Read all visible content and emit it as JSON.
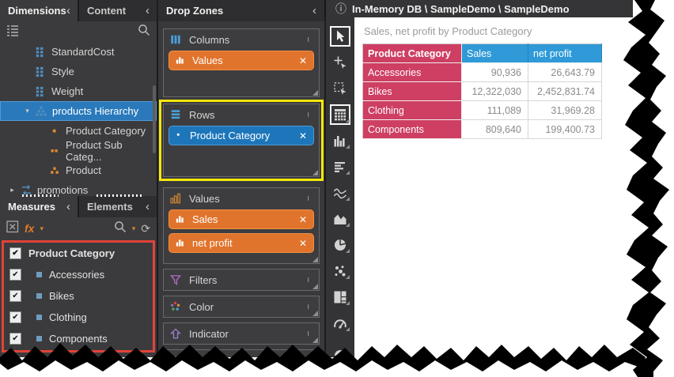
{
  "window": {
    "breadcrumb": "In-Memory DB \\ SampleDemo \\ SampleDemo"
  },
  "glyphs": {
    "collapse_chevron": "‹",
    "expander_down": "▾",
    "expander_right": "▸",
    "caret_down": "▾",
    "close_x": "✕",
    "checkmark": "✔",
    "refresh": "⟳",
    "info": "ⓘ",
    "fx": "fx"
  },
  "left_panel": {
    "tabs": [
      {
        "label": "Dimensions",
        "active": true
      },
      {
        "label": "Content",
        "active": false
      }
    ],
    "tree": [
      {
        "label": "StandardCost",
        "icon": "dimension-field-icon",
        "depth": 1
      },
      {
        "label": "Style",
        "icon": "dimension-field-icon",
        "depth": 1
      },
      {
        "label": "Weight",
        "icon": "dimension-field-icon",
        "depth": 1
      },
      {
        "label": "products Hierarchy",
        "icon": "hierarchy-icon",
        "depth": 1,
        "expanded": true,
        "selected": true
      },
      {
        "label": "Product Category",
        "icon": "hierarchy-level1-icon",
        "depth": 2
      },
      {
        "label": "Product Sub Categ...",
        "icon": "hierarchy-level2-icon",
        "depth": 2
      },
      {
        "label": "Product",
        "icon": "hierarchy-level3-icon",
        "depth": 2
      },
      {
        "label": "promotions",
        "icon": "table-relation-icon",
        "depth": 0,
        "collapsed": true
      }
    ],
    "bottom_tabs": [
      {
        "label": "Measures",
        "active": true
      },
      {
        "label": "Elements",
        "active": false
      }
    ],
    "checklist": [
      {
        "label": "Product Category",
        "checked": true,
        "header": true
      },
      {
        "label": "Accessories",
        "checked": true
      },
      {
        "label": "Bikes",
        "checked": true
      },
      {
        "label": "Clothing",
        "checked": true
      },
      {
        "label": "Components",
        "checked": true
      }
    ]
  },
  "drop_zones": {
    "title": "Drop Zones",
    "sections": [
      {
        "label": "Columns",
        "icon": "columns-icon",
        "chips": [
          {
            "label": "Values",
            "variant": "orange",
            "icon": "bar-chart-icon"
          }
        ]
      },
      {
        "label": "Rows",
        "icon": "rows-icon",
        "highlighted": true,
        "chips": [
          {
            "label": "Product Category",
            "variant": "blue",
            "icon": "square-bullet-icon"
          }
        ]
      },
      {
        "label": "Values",
        "icon": "values-icon",
        "chips": [
          {
            "label": "Sales",
            "variant": "orange",
            "icon": "bar-chart-icon"
          },
          {
            "label": "net profit",
            "variant": "orange",
            "icon": "bar-chart-icon"
          }
        ]
      },
      {
        "label": "Filters",
        "icon": "filter-icon",
        "chips": []
      },
      {
        "label": "Color",
        "icon": "color-icon",
        "chips": []
      },
      {
        "label": "Indicator",
        "icon": "indicator-icon",
        "chips": []
      },
      {
        "label": "",
        "icon": "partial-section-icon",
        "chips": [],
        "partial": true
      }
    ]
  },
  "element_toolbar": [
    {
      "name": "pointer-tool",
      "selected": true
    },
    {
      "name": "add-element-tool"
    },
    {
      "name": "marquee-select-tool"
    },
    {
      "name": "grid-element",
      "selected": true
    },
    {
      "name": "bar-chart-element"
    },
    {
      "name": "cards-element"
    },
    {
      "name": "line-chart-element"
    },
    {
      "name": "area-chart-element"
    },
    {
      "name": "pie-element"
    },
    {
      "name": "scatter-element"
    },
    {
      "name": "treemap-element"
    },
    {
      "name": "gauge-element"
    },
    {
      "name": "map-element"
    }
  ],
  "canvas": {
    "title": "Sales, net profit by Product Category",
    "chart_data": {
      "type": "table",
      "columns": [
        "Product Category",
        "Sales",
        "net profit"
      ],
      "rows": [
        [
          "Accessories",
          "90,936",
          "26,643.79"
        ],
        [
          "Bikes",
          "12,322,030",
          "2,452,831.74"
        ],
        [
          "Clothing",
          "111,089",
          "31,969.28"
        ],
        [
          "Components",
          "809,640",
          "199,400.73"
        ]
      ]
    }
  },
  "colors": {
    "chip_orange": "#e1742c",
    "chip_blue": "#1d76ba",
    "highlight_yellow": "#f6e70a",
    "highlight_red": "#e14338",
    "header_pink": "#ce3f63",
    "header_blue": "#2f9ad7",
    "selection_blue": "#2a79bb"
  }
}
